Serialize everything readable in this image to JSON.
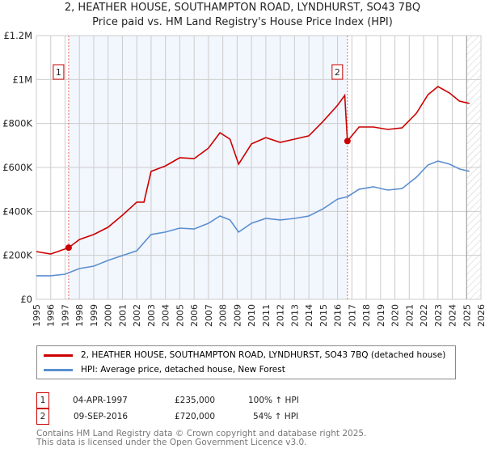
{
  "title": "2, HEATHER HOUSE, SOUTHAMPTON ROAD, LYNDHURST, SO43 7BQ",
  "subtitle": "Price paid vs. HM Land Registry's House Price Index (HPI)",
  "chart_data": {
    "type": "line",
    "title": "2, HEATHER HOUSE, SOUTHAMPTON ROAD, LYNDHURST, SO43 7BQ",
    "subtitle": "Price paid vs. HM Land Registry's House Price Index (HPI)",
    "xlim": [
      1995,
      2026
    ],
    "ylim": [
      0,
      1200000
    ],
    "x_ticks": [
      "1995",
      "1996",
      "1997",
      "1998",
      "1999",
      "2000",
      "2001",
      "2002",
      "2003",
      "2004",
      "2005",
      "2006",
      "2007",
      "2008",
      "2009",
      "2010",
      "2011",
      "2012",
      "2013",
      "2014",
      "2015",
      "2016",
      "2017",
      "2018",
      "2019",
      "2020",
      "2021",
      "2022",
      "2023",
      "2024",
      "2025",
      "2026"
    ],
    "y_ticks": [
      {
        "v": 0,
        "label": "£0"
      },
      {
        "v": 200000,
        "label": "£200K"
      },
      {
        "v": 400000,
        "label": "£400K"
      },
      {
        "v": 600000,
        "label": "£600K"
      },
      {
        "v": 800000,
        "label": "£800K"
      },
      {
        "v": 1000000,
        "label": "£1M"
      },
      {
        "v": 1200000,
        "label": "£1.2M"
      }
    ],
    "grid": true,
    "series": [
      {
        "name": "2, HEATHER HOUSE, SOUTHAMPTON ROAD, LYNDHURST, SO43 7BQ (detached house)",
        "color": "#cc0000",
        "x": [
          1995,
          1996,
          1997.25,
          1998,
          1999,
          2000,
          2001,
          2002,
          2002.5,
          2003,
          2004,
          2005,
          2006,
          2007,
          2007.8,
          2008.5,
          2009.1,
          2010,
          2011,
          2012,
          2013,
          2014,
          2015,
          2016,
          2016.5,
          2016.69,
          2017.5,
          2018.5,
          2019.5,
          2020.5,
          2021.5,
          2022.3,
          2023,
          2023.8,
          2024.5,
          2025.2
        ],
        "y": [
          217000,
          206000,
          235000,
          272000,
          295000,
          328000,
          383000,
          442000,
          442000,
          582000,
          607000,
          644000,
          640000,
          688000,
          758000,
          729000,
          615000,
          707000,
          736000,
          714000,
          729000,
          744000,
          810000,
          883000,
          928000,
          720000,
          784000,
          784000,
          773000,
          780000,
          847000,
          931000,
          968000,
          939000,
          902000,
          891000
        ]
      },
      {
        "name": "HPI: Average price, detached house, New Forest",
        "color": "#5b8fd0",
        "x": [
          1995,
          1996,
          1997,
          1998,
          1999,
          2000,
          2001,
          2002,
          2003,
          2004,
          2005,
          2006,
          2007,
          2007.8,
          2008.5,
          2009.1,
          2010,
          2011,
          2012,
          2013,
          2014,
          2015,
          2016,
          2016.7,
          2017.5,
          2018.5,
          2019.5,
          2020.5,
          2021.5,
          2022.3,
          2023,
          2023.8,
          2024.5,
          2025.2
        ],
        "y": [
          107000,
          107000,
          114000,
          140000,
          151000,
          177000,
          199000,
          221000,
          295000,
          306000,
          324000,
          320000,
          346000,
          379000,
          361000,
          306000,
          346000,
          368000,
          361000,
          368000,
          379000,
          412000,
          456000,
          467000,
          501000,
          512000,
          497000,
          504000,
          556000,
          611000,
          629000,
          615000,
          593000,
          582000
        ]
      }
    ],
    "sales": [
      {
        "id": "1",
        "x": 1997.25,
        "y": 235000,
        "date": "04-APR-1997",
        "price": "£235,000",
        "hpi": "100% ↑ HPI"
      },
      {
        "id": "2",
        "x": 2016.69,
        "y": 720000,
        "date": "09-SEP-2016",
        "price": "£720,000",
        "hpi": "54% ↑ HPI"
      }
    ],
    "forecast_start": 2025.0,
    "legend_placement": "bottom"
  },
  "footer": [
    "Contains HM Land Registry data © Crown copyright and database right 2025.",
    "This data is licensed under the Open Government Licence v3.0."
  ]
}
